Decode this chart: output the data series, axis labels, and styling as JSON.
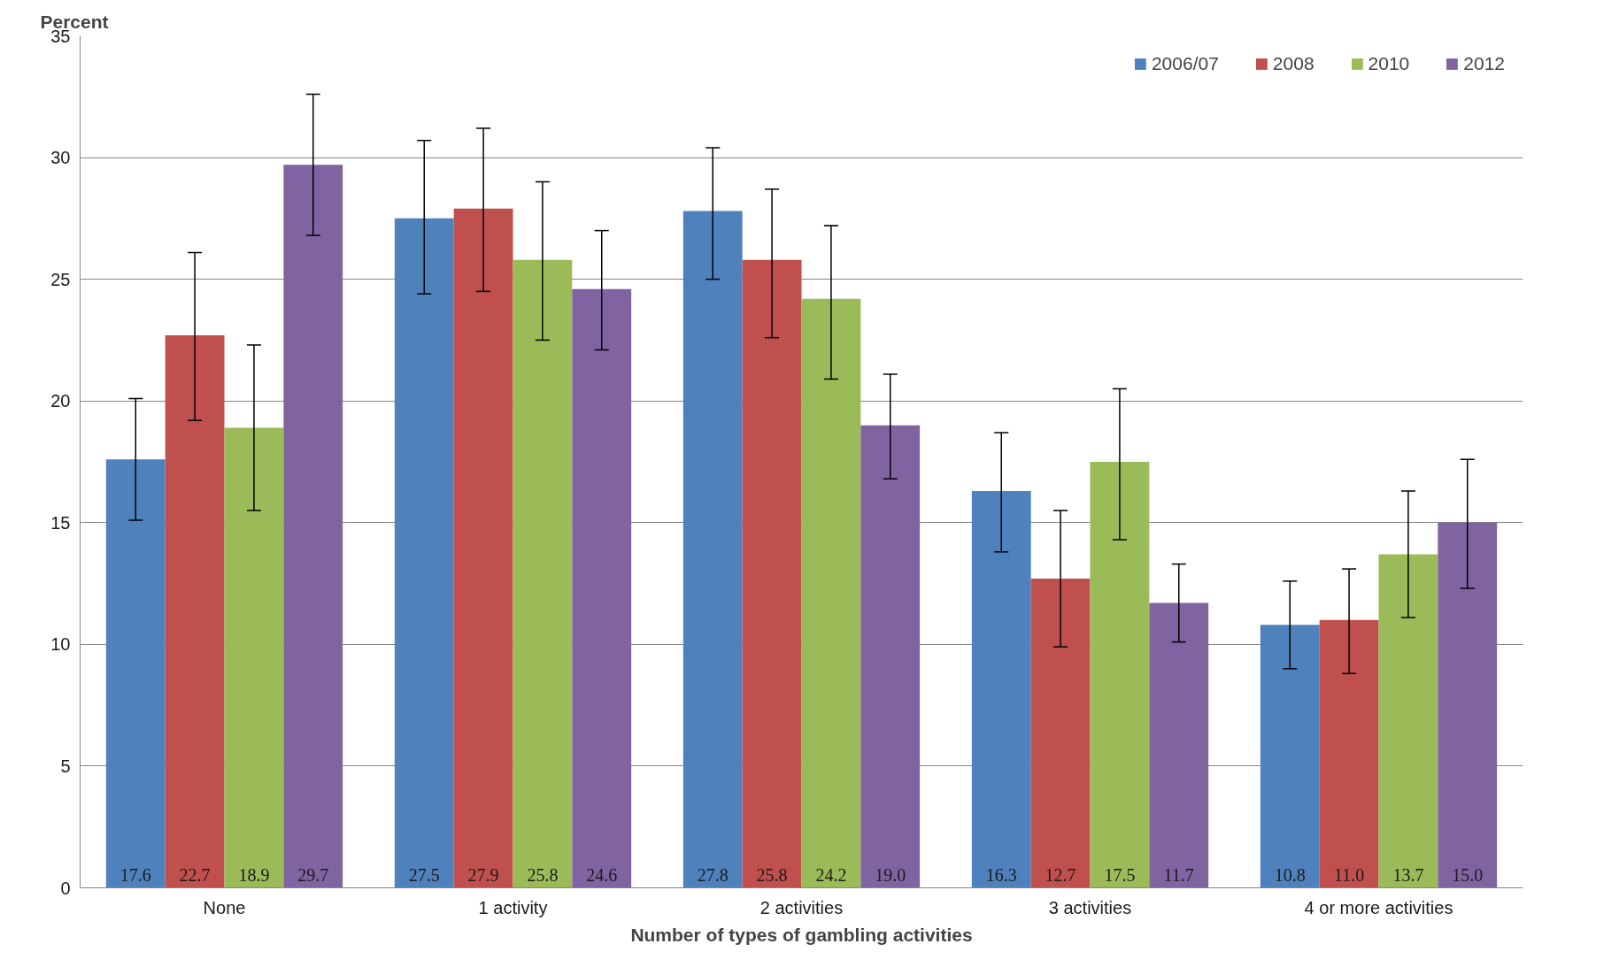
{
  "chart_data": {
    "type": "bar",
    "ylabel": "Percent",
    "xlabel": "Number of types of gambling activities",
    "categories": [
      "None",
      "1 activity",
      "2 activities",
      "3 activities",
      "4 or more activities"
    ],
    "ylim": [
      0,
      35
    ],
    "yticks": [
      0,
      5,
      10,
      15,
      20,
      25,
      30,
      35
    ],
    "grid": "y",
    "legend": "top right",
    "series": [
      {
        "name": "2006/07",
        "color": "#4f81bd",
        "values": [
          17.6,
          27.5,
          27.8,
          16.3,
          10.8
        ],
        "value_labels": [
          "17.6",
          "27.5",
          "27.8",
          "16.3",
          "10.8"
        ],
        "errors": [
          [
            15.1,
            20.1
          ],
          [
            24.4,
            30.7
          ],
          [
            25.0,
            30.4
          ],
          [
            13.8,
            18.7
          ],
          [
            9.0,
            12.6
          ]
        ]
      },
      {
        "name": "2008",
        "color": "#c0504d",
        "values": [
          22.7,
          27.9,
          25.8,
          12.7,
          11.0
        ],
        "value_labels": [
          "22.7",
          "27.9",
          "25.8",
          "12.7",
          "11.0"
        ],
        "errors": [
          [
            19.2,
            26.1
          ],
          [
            24.5,
            31.2
          ],
          [
            22.6,
            28.7
          ],
          [
            9.9,
            15.5
          ],
          [
            8.8,
            13.1
          ]
        ]
      },
      {
        "name": "2010",
        "color": "#9bbb59",
        "values": [
          18.9,
          25.8,
          24.2,
          17.5,
          13.7
        ],
        "value_labels": [
          "18.9",
          "25.8",
          "24.2",
          "17.5",
          "13.7"
        ],
        "errors": [
          [
            15.5,
            22.3
          ],
          [
            22.5,
            29.0
          ],
          [
            20.9,
            27.2
          ],
          [
            14.3,
            20.5
          ],
          [
            11.1,
            16.3
          ]
        ]
      },
      {
        "name": "2012",
        "color": "#8064a2",
        "values": [
          29.7,
          24.6,
          19.0,
          11.7,
          15.0
        ],
        "value_labels": [
          "29.7",
          "24.6",
          "19.0",
          "11.7",
          "15.0"
        ],
        "errors": [
          [
            26.8,
            32.6
          ],
          [
            22.1,
            27.0
          ],
          [
            16.8,
            21.1
          ],
          [
            10.1,
            13.3
          ],
          [
            12.3,
            17.6
          ]
        ]
      }
    ]
  }
}
